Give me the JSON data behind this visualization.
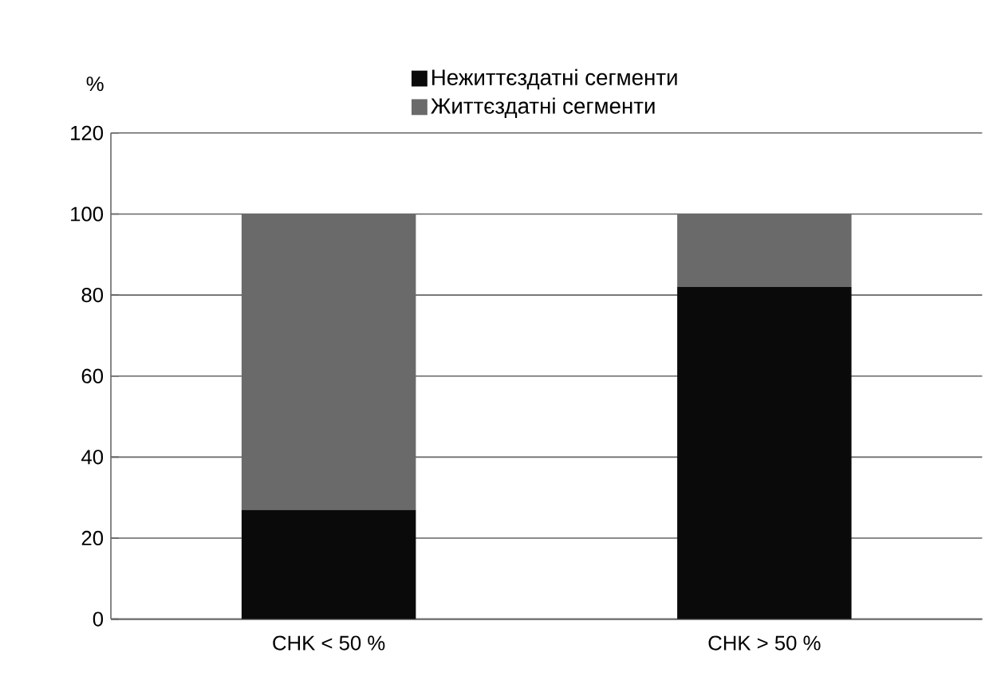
{
  "chart_data": {
    "type": "bar",
    "stacked": true,
    "ylabel": "%",
    "categories": [
      "CHK < 50 %",
      "CHK > 50 %"
    ],
    "series": [
      {
        "name": "Нежиттєздатні сегменти",
        "color": "#0a0a0a",
        "values": [
          27,
          82
        ]
      },
      {
        "name": "Життєздатні сегменти",
        "color": "#6a6a6a",
        "values": [
          73,
          18
        ]
      }
    ],
    "ylim": [
      0,
      120
    ],
    "yticks": [
      0,
      20,
      40,
      60,
      80,
      100,
      120
    ],
    "grid": "y",
    "legend": "top"
  }
}
